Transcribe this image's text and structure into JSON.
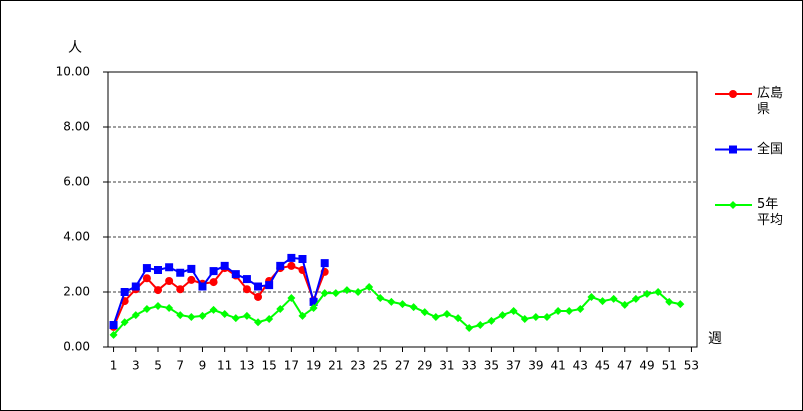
{
  "chart_data": {
    "type": "line",
    "y_label": "人",
    "x_label": "週",
    "x": [
      1,
      2,
      3,
      4,
      5,
      6,
      7,
      8,
      9,
      10,
      11,
      12,
      13,
      14,
      15,
      16,
      17,
      18,
      19,
      20,
      21,
      22,
      23,
      24,
      25,
      26,
      27,
      28,
      29,
      30,
      31,
      32,
      33,
      34,
      35,
      36,
      37,
      38,
      39,
      40,
      41,
      42,
      43,
      44,
      45,
      46,
      47,
      48,
      49,
      50,
      51,
      52,
      53
    ],
    "xlim": [
      0.5,
      53.5
    ],
    "xticks": [
      1,
      3,
      5,
      7,
      9,
      11,
      13,
      15,
      17,
      19,
      21,
      23,
      25,
      27,
      29,
      31,
      33,
      35,
      37,
      39,
      41,
      43,
      45,
      47,
      49,
      51,
      53
    ],
    "ylim": [
      0,
      10
    ],
    "yticks": [
      {
        "value": 0,
        "label": "0.00"
      },
      {
        "value": 2,
        "label": "2.00"
      },
      {
        "value": 4,
        "label": "4.00"
      },
      {
        "value": 6,
        "label": "6.00"
      },
      {
        "value": 8,
        "label": "8.00"
      },
      {
        "value": 10,
        "label": "10.00"
      }
    ],
    "grid": true,
    "series": [
      {
        "name": "広島県",
        "color": "#ff0000",
        "marker": "circle",
        "values": [
          0.73,
          1.67,
          2.1,
          2.5,
          2.07,
          2.4,
          2.1,
          2.44,
          2.3,
          2.36,
          2.87,
          2.6,
          2.1,
          1.82,
          2.4,
          2.87,
          2.95,
          2.8,
          1.7,
          2.73,
          null,
          null,
          null,
          null,
          null,
          null,
          null,
          null,
          null,
          null,
          null,
          null,
          null,
          null,
          null,
          null,
          null,
          null,
          null,
          null,
          null,
          null,
          null,
          null,
          null,
          null,
          null,
          null,
          null,
          null,
          null,
          null,
          null
        ]
      },
      {
        "name": "全国",
        "color": "#0000ff",
        "marker": "square",
        "values": [
          0.8,
          2.0,
          2.2,
          2.87,
          2.8,
          2.9,
          2.7,
          2.84,
          2.2,
          2.76,
          2.95,
          2.65,
          2.47,
          2.2,
          2.25,
          2.95,
          3.24,
          3.2,
          1.64,
          3.05,
          null,
          null,
          null,
          null,
          null,
          null,
          null,
          null,
          null,
          null,
          null,
          null,
          null,
          null,
          null,
          null,
          null,
          null,
          null,
          null,
          null,
          null,
          null,
          null,
          null,
          null,
          null,
          null,
          null,
          null,
          null,
          null,
          null
        ]
      },
      {
        "name": "5年平均",
        "color": "#00ff00",
        "marker": "diamond",
        "values": [
          0.44,
          0.9,
          1.16,
          1.38,
          1.49,
          1.42,
          1.16,
          1.09,
          1.13,
          1.35,
          1.2,
          1.05,
          1.13,
          0.9,
          1.02,
          1.38,
          1.78,
          1.13,
          1.42,
          1.96,
          1.96,
          2.07,
          2.0,
          2.18,
          1.78,
          1.64,
          1.56,
          1.45,
          1.27,
          1.09,
          1.2,
          1.05,
          0.69,
          0.8,
          0.95,
          1.16,
          1.31,
          1.02,
          1.09,
          1.09,
          1.31,
          1.31,
          1.38,
          1.82,
          1.67,
          1.75,
          1.53,
          1.75,
          1.93,
          2.0,
          1.64,
          1.56,
          null
        ]
      }
    ]
  }
}
